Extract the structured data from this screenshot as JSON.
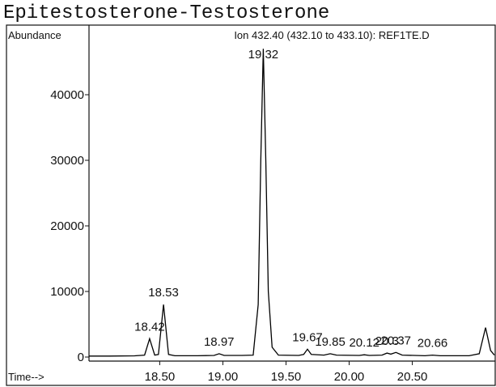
{
  "chart_data": {
    "type": "line",
    "title": "Epitestosterone-Testosterone",
    "subtitle": "Ion 432.40 (432.10 to 433.10): REF1TE.D",
    "y_label": "Abundance",
    "x_label": "Time-->",
    "series": [
      {
        "color": "#000000",
        "x": [
          17.94,
          18.1,
          18.3,
          18.38,
          18.42,
          18.46,
          18.49,
          18.53,
          18.57,
          18.62,
          18.8,
          18.93,
          18.97,
          19.01,
          19.15,
          19.24,
          19.28,
          19.3,
          19.32,
          19.34,
          19.36,
          19.39,
          19.44,
          19.6,
          19.64,
          19.67,
          19.7,
          19.8,
          19.85,
          19.9,
          20.08,
          20.12,
          20.16,
          20.26,
          20.3,
          20.33,
          20.37,
          20.42,
          20.6,
          20.66,
          20.72,
          20.95,
          21.03,
          21.08,
          21.12,
          21.15
        ],
        "values": [
          150,
          150,
          180,
          300,
          2800,
          300,
          400,
          8000,
          400,
          200,
          200,
          250,
          500,
          250,
          250,
          300,
          8000,
          30000,
          47000,
          30000,
          10000,
          1500,
          300,
          250,
          400,
          1200,
          400,
          300,
          500,
          300,
          250,
          350,
          250,
          300,
          600,
          450,
          700,
          300,
          200,
          300,
          200,
          200,
          500,
          4500,
          1000,
          300
        ]
      }
    ],
    "peaks": {
      "x": [
        18.42,
        18.53,
        18.97,
        19.32,
        19.67,
        19.85,
        20.12,
        20.3,
        20.37,
        20.66
      ],
      "y": [
        2800,
        8000,
        500,
        47000,
        1200,
        500,
        350,
        600,
        700,
        300
      ]
    },
    "xlim": [
      17.94,
      21.15
    ],
    "ylim": [
      0,
      50000
    ],
    "xticks": [
      {
        "value": 18.5,
        "label": "18.50"
      },
      {
        "value": 19,
        "label": "19.00"
      },
      {
        "value": 19.5,
        "label": "19.50"
      },
      {
        "value": 20,
        "label": "20.00"
      },
      {
        "value": 20.5,
        "label": "20.50"
      }
    ],
    "yticks": [
      0,
      10000,
      20000,
      30000,
      40000
    ],
    "grid": false
  }
}
